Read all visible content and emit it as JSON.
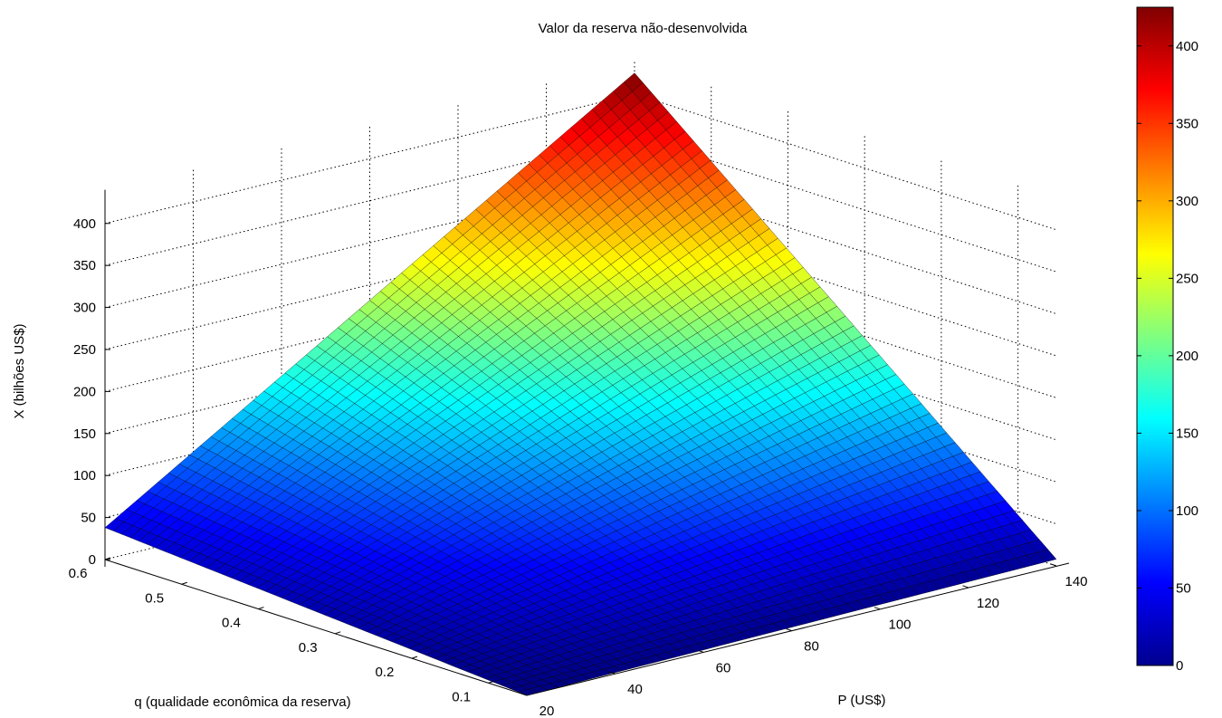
{
  "chart_data": {
    "type": "surface",
    "title": "Valor da reserva não-desenvolvida",
    "xlabel": "P (US$)",
    "ylabel": "q (qualidade econômica da reserva)",
    "zlabel": "X (bilhões US$)",
    "x": {
      "range": [
        20,
        140
      ],
      "ticks": [
        "20",
        "40",
        "60",
        "80",
        "100",
        "120",
        "140"
      ]
    },
    "y": {
      "range": [
        0.05,
        0.6
      ],
      "ticks": [
        "0.1",
        "0.2",
        "0.3",
        "0.4",
        "0.5",
        "0.6"
      ]
    },
    "z": {
      "range": [
        0,
        440
      ],
      "ticks": [
        "0",
        "50",
        "100",
        "150",
        "200",
        "250",
        "300",
        "350",
        "400"
      ]
    },
    "colorbar": {
      "range": [
        0,
        425
      ],
      "ticks": [
        "0",
        "50",
        "100",
        "150",
        "200",
        "250",
        "300",
        "350",
        "400"
      ],
      "colormap": "jet"
    },
    "corner_values": {
      "P20_q0.05": 0,
      "P140_q0.05": 8,
      "P20_q0.6": 38,
      "P140_q0.6": 425
    },
    "grid": true
  }
}
